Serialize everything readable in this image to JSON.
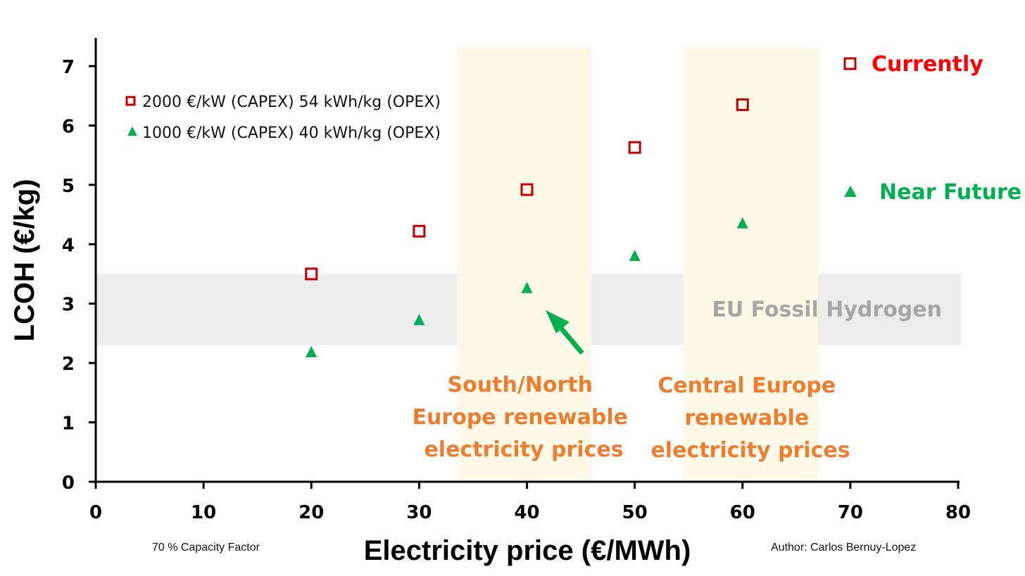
{
  "chart_data": {
    "type": "scatter",
    "xlabel": "Electricity price (€/MWh)",
    "ylabel": "LCOH (€/kg)",
    "xlim": [
      0,
      80
    ],
    "ylim": [
      0,
      7
    ],
    "x_ticks": [
      0,
      10,
      20,
      30,
      40,
      50,
      60,
      70,
      80
    ],
    "y_ticks": [
      0,
      1,
      2,
      3,
      4,
      5,
      6,
      7
    ],
    "grid": false,
    "legend_position": "top-left",
    "series": [
      {
        "name": "2000 €/kW (CAPEX) 54 kWh/kg (OPEX)",
        "marker": "hollow-square",
        "color": "#c00000",
        "x": [
          20,
          30,
          40,
          50,
          60
        ],
        "y": [
          3.5,
          4.22,
          4.92,
          5.63,
          6.35
        ]
      },
      {
        "name": "1000 €/kW (CAPEX) 40 kWh/kg (OPEX)",
        "marker": "triangle",
        "color": "#00b050",
        "x": [
          20,
          30,
          40,
          50,
          60
        ],
        "y": [
          2.18,
          2.72,
          3.26,
          3.8,
          4.35
        ]
      }
    ],
    "bands": [
      {
        "type": "horizontal",
        "from": 2.3,
        "to": 3.5,
        "color": "#ededed",
        "label": "EU Fossil Hydrogen",
        "label_color": "#a6a6a6"
      },
      {
        "type": "vertical",
        "from": 33.5,
        "to": 46,
        "color": "#fff9e6",
        "label_lines": [
          "South/North",
          "Europe renewable",
          "electricity prices"
        ],
        "label_color": "#ed7d31"
      },
      {
        "type": "vertical",
        "from": 54.5,
        "to": 67,
        "color": "#fff9e6",
        "label_lines": [
          "Central Europe",
          "renewable",
          "electricity prices"
        ],
        "label_color": "#ed7d31"
      }
    ],
    "annotations": {
      "currently": {
        "text": "Currently",
        "color": "#ff0000"
      },
      "near_future": {
        "text": "Near Future",
        "color": "#00b050"
      },
      "note_left": "70 % Capacity Factor",
      "note_right": "Author: Carlos Bernuy-Lopez",
      "arrow_color": "#00b050"
    }
  }
}
